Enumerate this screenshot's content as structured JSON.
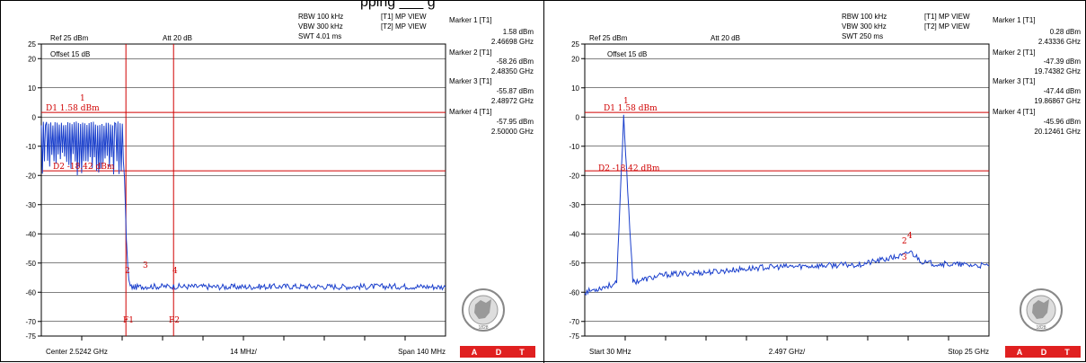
{
  "banner": "pping ___ g",
  "panels": [
    {
      "id": "left",
      "header": {
        "rbw": "RBW 100 kHz",
        "vbw": "VBW 300 kHz",
        "swt": "SWT 4.01 ms",
        "trace1": "[T1] MP VIEW",
        "trace2": "[T2] MP VIEW",
        "ref": "Ref 25 dBm",
        "att": "Att  20 dB",
        "offset": "Offset 15 dB"
      },
      "footer": {
        "left": "Center 2.5242 GHz",
        "mid": "14 MHz/",
        "right": "Span 140 MHz"
      },
      "markers": [
        {
          "name": "Marker 1 [T1]",
          "level": "1.58 dBm",
          "freq": "2.46698 GHz"
        },
        {
          "name": "Marker 2 [T1]",
          "level": "-58.26 dBm",
          "freq": "2.48350 GHz"
        },
        {
          "name": "Marker 3 [T1]",
          "level": "-55.87 dBm",
          "freq": "2.48972 GHz"
        },
        {
          "name": "Marker 4 [T1]",
          "level": "-57.95 dBm",
          "freq": "2.50000 GHz"
        }
      ],
      "display_lines": {
        "d1": "D1 1.58 dBm",
        "d2": "D2 -18.42 dBm"
      },
      "freq_lines": {
        "f1": "F1",
        "f2": "F2"
      },
      "marker_labels": [
        "1",
        "2",
        "3",
        "4"
      ]
    },
    {
      "id": "right",
      "header": {
        "rbw": "RBW 100 kHz",
        "vbw": "VBW 300 kHz",
        "swt": "SWT 250 ms",
        "trace1": "[T1] MP VIEW",
        "trace2": "[T2] MP VIEW",
        "ref": "Ref 25 dBm",
        "att": "Att  20 dB",
        "offset": "Offset 15 dB"
      },
      "footer": {
        "left": "Start 30 MHz",
        "mid": "2.497 GHz/",
        "right": "Stop 25 GHz"
      },
      "markers": [
        {
          "name": "Marker 1 [T1]",
          "level": "0.28 dBm",
          "freq": "2.43336 GHz"
        },
        {
          "name": "Marker 2 [T1]",
          "level": "-47.39 dBm",
          "freq": "19.74382 GHz"
        },
        {
          "name": "Marker 3 [T1]",
          "level": "-47.44 dBm",
          "freq": "19.86867 GHz"
        },
        {
          "name": "Marker 4 [T1]",
          "level": "-45.96 dBm",
          "freq": "20.12461 GHz"
        }
      ],
      "display_lines": {
        "d1": "D1 1.58 dBm",
        "d2": "D2 -18.42 dBm"
      },
      "marker_labels": [
        "1",
        "2",
        "3",
        "4"
      ]
    }
  ],
  "badge": {
    "letters": [
      "A",
      "D",
      "T"
    ],
    "year": "1828",
    "ring_text": "BUREAU VERITAS"
  },
  "colors": {
    "trace": "#1a3fcc",
    "limit": "#d00000",
    "badge": "#e02020"
  },
  "chart_data": [
    {
      "type": "line",
      "title": "",
      "xlabel": "",
      "ylabel": "",
      "x_unit": "GHz",
      "y_unit": "dBm",
      "xlim": [
        2.4542,
        2.5942
      ],
      "ylim": [
        -75,
        25
      ],
      "y_ticks": [
        25,
        20,
        10,
        0,
        -10,
        -20,
        -30,
        -40,
        -50,
        -60,
        -70,
        -75
      ],
      "grid": true,
      "series": [
        {
          "x": [
            2.4542,
            2.456,
            2.47,
            2.48,
            2.483,
            2.4835,
            2.4838,
            2.4845,
            2.485,
            2.486,
            2.49,
            2.5,
            2.52,
            2.54,
            2.56,
            2.58,
            2.5942
          ],
          "y": [
            -5,
            -4,
            -5,
            -5,
            -20,
            -38,
            -45,
            -56,
            -58,
            -58.3,
            -58,
            -58,
            -58.2,
            -58,
            -58.1,
            -58,
            -58.2
          ]
        }
      ],
      "display_lines_dbm": [
        1.58,
        -18.42
      ],
      "freq_lines_ghz": [
        2.4835,
        2.5
      ]
    },
    {
      "type": "line",
      "title": "",
      "xlabel": "",
      "ylabel": "",
      "x_unit": "GHz",
      "y_unit": "dBm",
      "xlim": [
        0.03,
        25
      ],
      "ylim": [
        -75,
        25
      ],
      "y_ticks": [
        25,
        20,
        10,
        0,
        -10,
        -20,
        -30,
        -40,
        -50,
        -60,
        -70,
        -75
      ],
      "grid": true,
      "series": [
        {
          "x": [
            0.03,
            1,
            2,
            2.43,
            3,
            5,
            8,
            11,
            14,
            17,
            19.74,
            20.12,
            21,
            23,
            25
          ],
          "y": [
            -60,
            -58.5,
            -57,
            0.28,
            -56.5,
            -54,
            -53,
            -51.5,
            -51,
            -50.5,
            -47.4,
            -46,
            -50,
            -50.5,
            -51
          ]
        }
      ],
      "display_lines_dbm": [
        1.58,
        -18.42
      ]
    }
  ]
}
